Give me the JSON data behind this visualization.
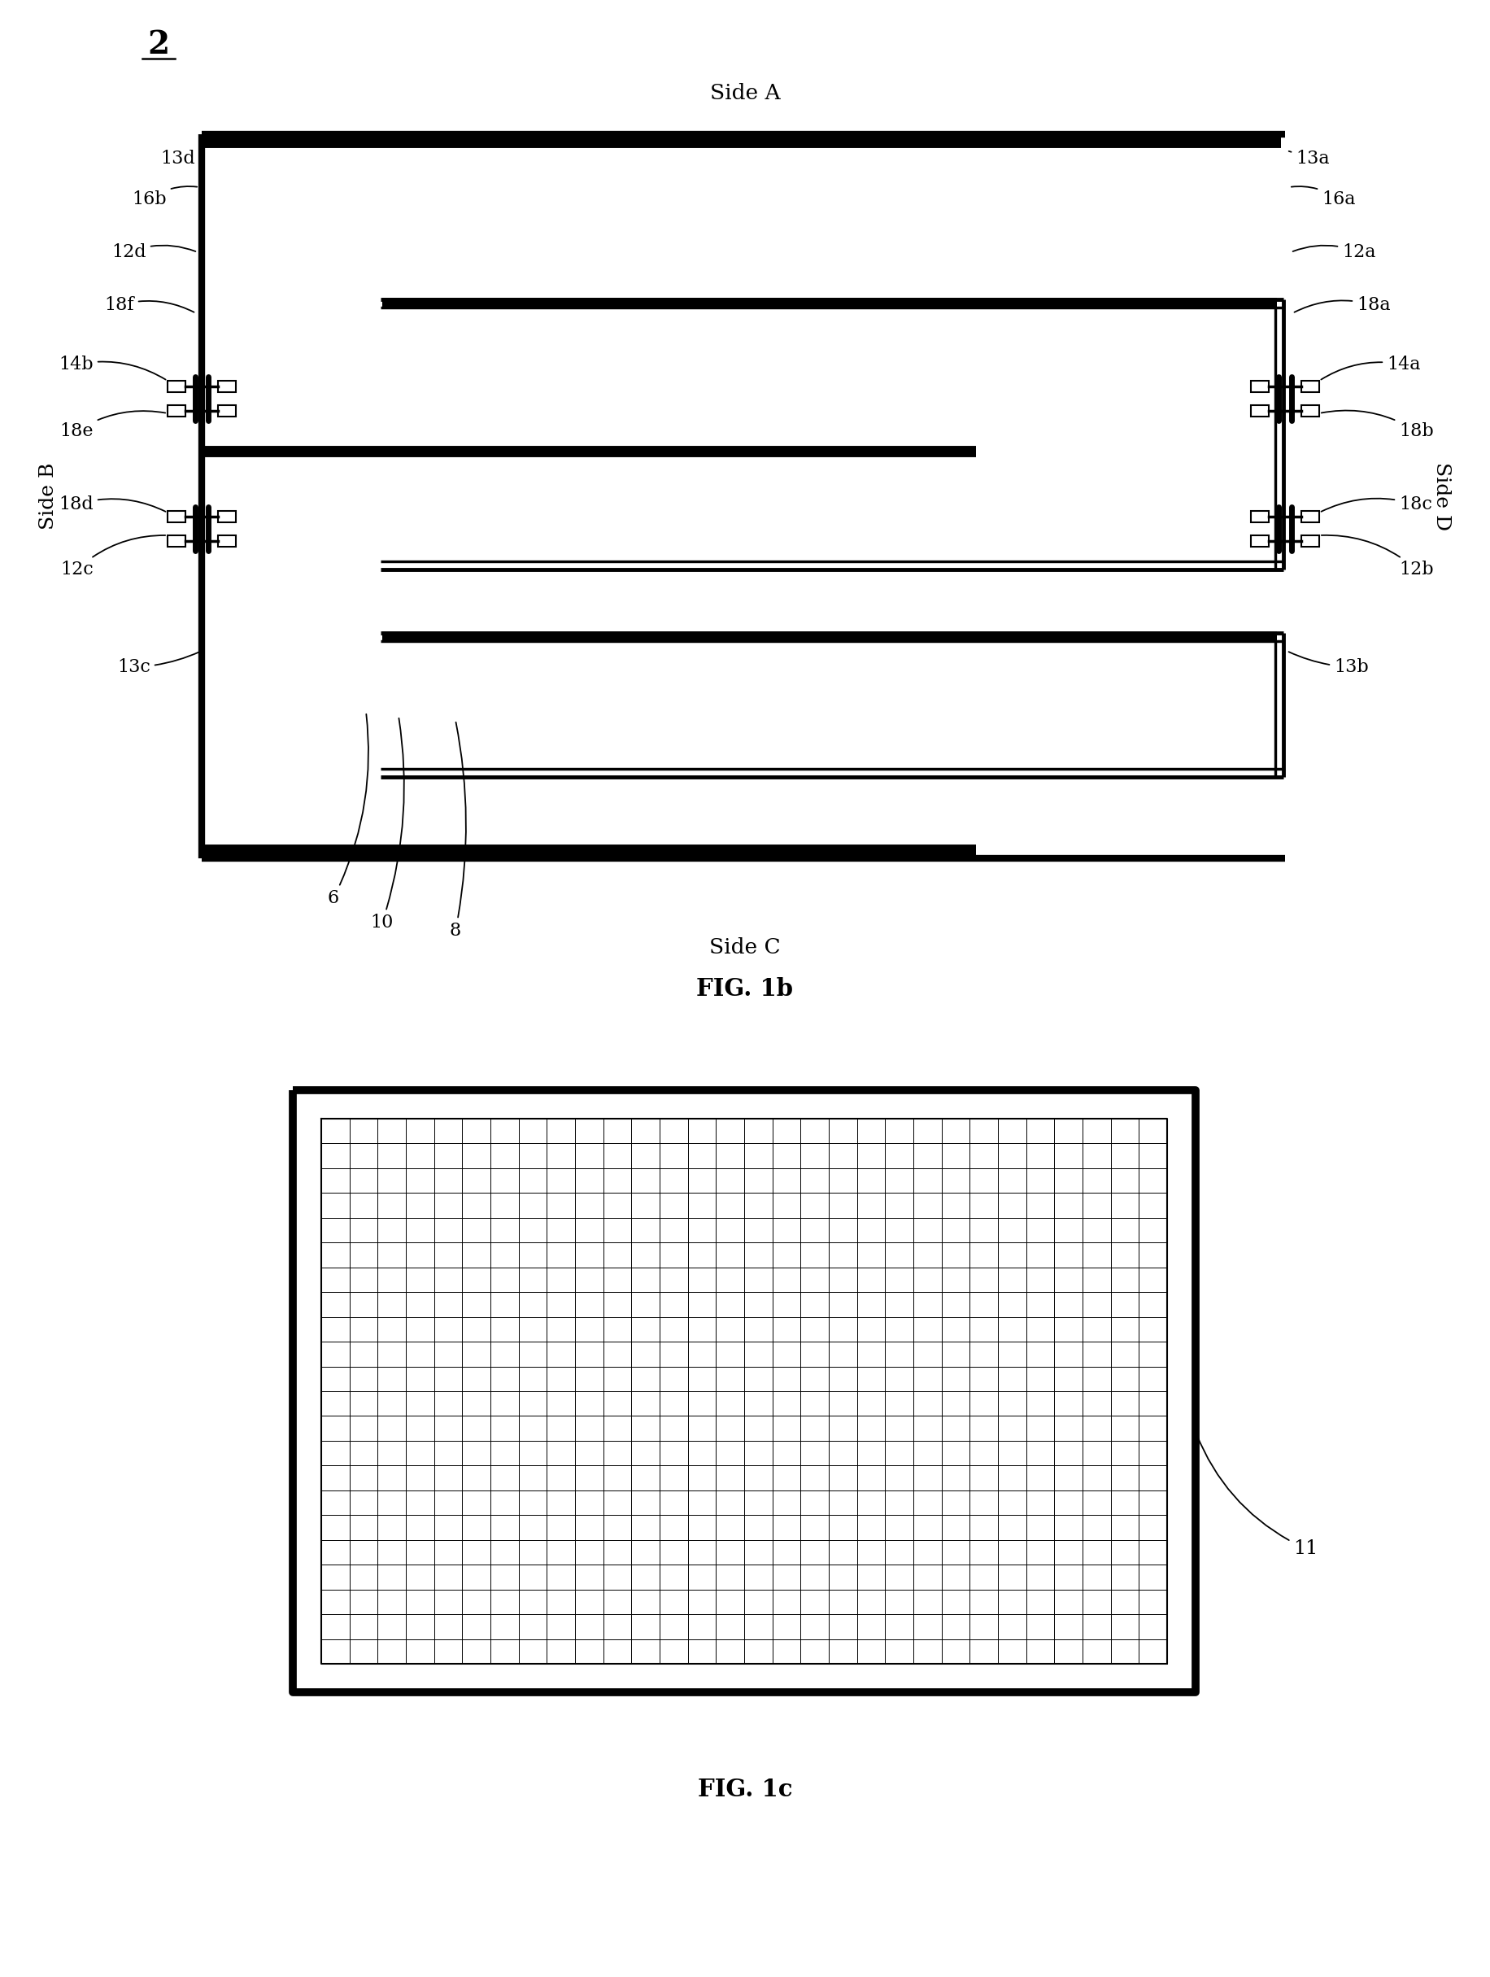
{
  "fig_number": "2",
  "side_a_label": "Side A",
  "side_b_label": "Side B",
  "side_c_label": "Side C",
  "side_d_label": "Side D",
  "fig1b_label": "FIG. 1b",
  "fig1c_label": "FIG. 1c",
  "bg_color": "#ffffff",
  "line_color": "#000000"
}
